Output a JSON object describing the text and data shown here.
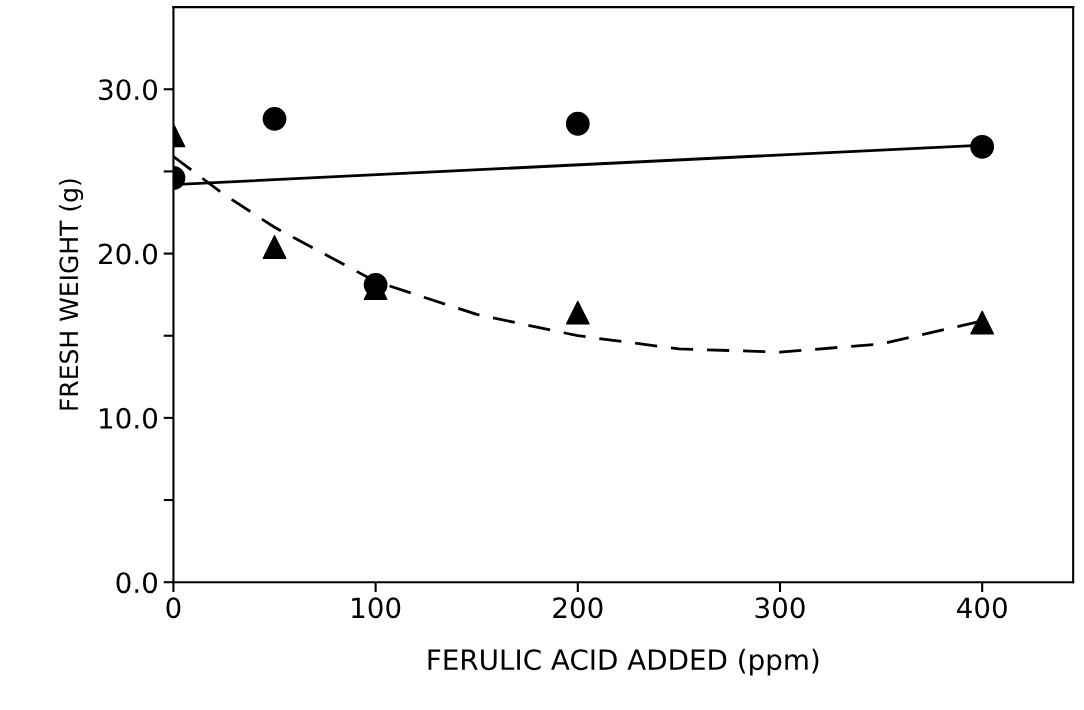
{
  "chart_data": {
    "type": "scatter",
    "xlabel": "FERULIC ACID ADDED (ppm)",
    "ylabel": "FRESH WEIGHT (g)",
    "xlim": [
      0,
      445
    ],
    "ylim": [
      0,
      35
    ],
    "xticks": [
      0,
      100,
      200,
      300,
      400
    ],
    "yticks": [
      {
        "value": 0,
        "label": "0.0"
      },
      {
        "value": 5,
        "label": null
      },
      {
        "value": 10,
        "label": "10.0"
      },
      {
        "value": 15,
        "label": null
      },
      {
        "value": 20,
        "label": "20.0"
      },
      {
        "value": 25,
        "label": null
      },
      {
        "value": 30,
        "label": "30.0"
      }
    ],
    "grid": false,
    "legend": false,
    "series": [
      {
        "marker": "circle",
        "color": "#000000",
        "x": [
          0,
          50,
          100,
          200,
          400
        ],
        "values": [
          24.6,
          28.2,
          18.1,
          27.9,
          26.5
        ]
      },
      {
        "marker": "triangle",
        "color": "#000000",
        "x": [
          0,
          50,
          100,
          200,
          400
        ],
        "values": [
          27.2,
          20.4,
          17.9,
          16.4,
          15.8
        ]
      },
      {
        "type": "line",
        "marker": "none",
        "line_style": "solid",
        "color": "#000000",
        "x": [
          0,
          400
        ],
        "values": [
          24.2,
          26.6
        ]
      },
      {
        "type": "line",
        "marker": "none",
        "line_style": "dashed",
        "color": "#000000",
        "x": [
          0,
          25,
          50,
          100,
          150,
          200,
          250,
          300,
          350,
          400
        ],
        "values": [
          25.9,
          23.6,
          21.6,
          18.3,
          16.3,
          15.0,
          14.2,
          14.0,
          14.5,
          15.9
        ]
      }
    ]
  }
}
